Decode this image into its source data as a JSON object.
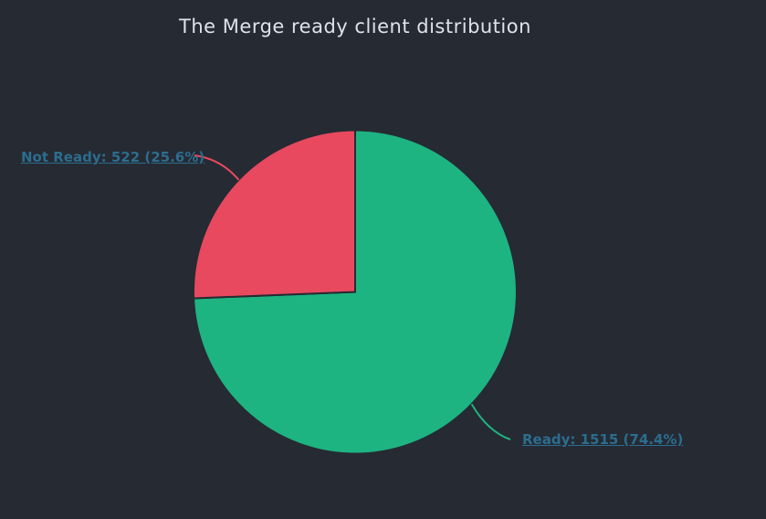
{
  "page": {
    "background_color": "#262a33"
  },
  "chart_data": {
    "type": "pie",
    "title": "The Merge ready client distribution",
    "title_color": "#dfe3e8",
    "legend": "none",
    "start_angle_deg": 0,
    "direction": "clockwise",
    "label_color": "#2b6d8e",
    "slice_border_color": "#262a33",
    "total": 2037,
    "slices": [
      {
        "name": "Ready",
        "value": 1515,
        "percent": 74.4,
        "label": "Ready: 1515 (74.4%)",
        "color": "#1db481"
      },
      {
        "name": "Not Ready",
        "value": 522,
        "percent": 25.6,
        "label": "Not Ready: 522 (25.6%)",
        "color": "#e8495f"
      }
    ]
  }
}
